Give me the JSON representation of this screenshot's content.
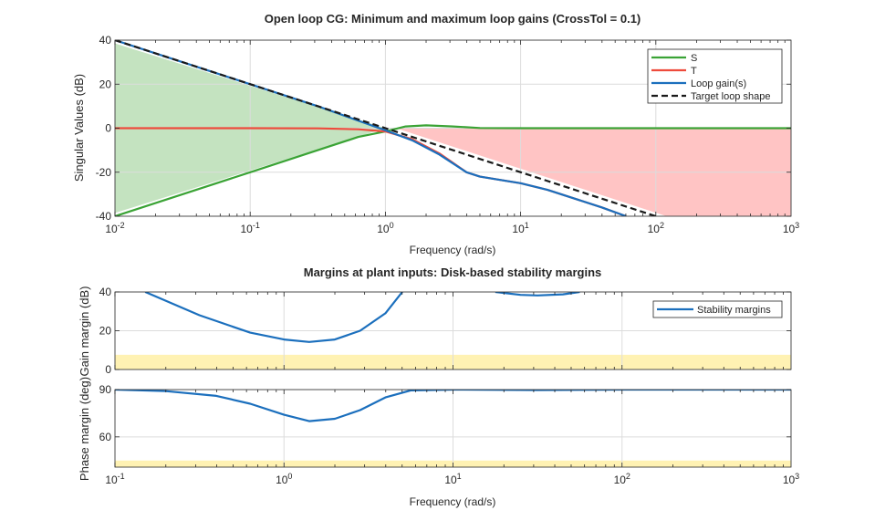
{
  "chart_data": [
    {
      "type": "line",
      "title": "Open loop CG: Minimum and maximum loop gains (CrossTol = 0.1)",
      "xlabel": "Frequency (rad/s)",
      "ylabel": "Singular Values (dB)",
      "xscale": "log",
      "xlim": [
        0.01,
        1000
      ],
      "ylim": [
        -40,
        40
      ],
      "xticks": [
        0.01,
        0.1,
        1,
        10,
        100,
        1000
      ],
      "xtick_labels": [
        [
          "10",
          "-2"
        ],
        [
          "10",
          "-1"
        ],
        [
          "10",
          "0"
        ],
        [
          "10",
          "1"
        ],
        [
          "10",
          "2"
        ],
        [
          "10",
          "3"
        ]
      ],
      "yticks": [
        -40,
        -20,
        0,
        20,
        40
      ],
      "ytick_labels": [
        "-40",
        "-20",
        "0",
        "20",
        "40"
      ],
      "grid": true,
      "legend": "top-right",
      "regions": [
        {
          "name": "low-frequency bound",
          "color": "#c4e3c0",
          "points": [
            [
              0.01,
              38.5
            ],
            [
              1,
              0
            ],
            [
              0.01,
              -38.5
            ]
          ]
        },
        {
          "name": "high-frequency bound",
          "color": "#ffc4c4",
          "points": [
            [
              1.2,
              0
            ],
            [
              1000,
              0
            ],
            [
              1000,
              -40
            ],
            [
              120,
              -40
            ]
          ]
        }
      ],
      "series": [
        {
          "name": "S",
          "color": "#3aa335",
          "dash": false,
          "x": [
            0.01,
            0.1,
            0.316,
            0.63,
            1,
            1.41,
            2,
            3.16,
            5,
            10,
            100,
            1000
          ],
          "y": [
            -40,
            -20,
            -10,
            -4,
            -1.5,
            0.8,
            1.3,
            0.8,
            0.1,
            0,
            0,
            0
          ]
        },
        {
          "name": "T",
          "color": "#ee4b3c",
          "dash": false,
          "x": [
            0.01,
            0.1,
            0.316,
            0.63,
            1,
            1.58,
            2.51,
            3.98,
            5,
            7.94,
            10,
            15.8,
            25.1,
            39.8,
            60.3
          ],
          "y": [
            0,
            0,
            -0.1,
            -0.5,
            -1.5,
            -5,
            -11.5,
            -20,
            -22,
            -24,
            -25,
            -28,
            -32,
            -36,
            -40
          ]
        },
        {
          "name": "Loop gain(s)",
          "color": "#1b6fbd",
          "dash": false,
          "x": [
            0.01,
            0.1,
            0.316,
            1,
            1.58,
            2.51,
            3.98,
            5,
            7.94,
            10,
            15.8,
            25.1,
            39.8,
            60.3
          ],
          "y": [
            40,
            20,
            10,
            -1,
            -5.5,
            -12,
            -20,
            -22,
            -24,
            -25,
            -28,
            -32,
            -36,
            -40
          ]
        },
        {
          "name": "Target loop shape",
          "color": "#1a1a1a",
          "dash": true,
          "x": [
            0.01,
            100
          ],
          "y": [
            40,
            -40
          ]
        }
      ]
    },
    {
      "type": "line",
      "title": "Margins at plant inputs: Disk-based stability margins",
      "ylabel": "Gain margin (dB)",
      "xscale": "log",
      "xlim": [
        0.1,
        1000
      ],
      "ylim": [
        0,
        40
      ],
      "yticks": [
        0,
        20,
        40
      ],
      "ytick_labels": [
        "0",
        "20",
        "40"
      ],
      "grid": true,
      "legend": "top-right",
      "band": {
        "from": 0,
        "to": 7.6,
        "color": "#fff2b3"
      },
      "series": [
        {
          "name": "Stability margins",
          "color": "#1b6fbd",
          "segments": [
            {
              "x": [
                0.151,
                0.316,
                0.631,
                1,
                1.41,
                2,
                2.82,
                3.98,
                5.01
              ],
              "y": [
                40,
                28,
                19,
                15.5,
                14.2,
                15.5,
                20,
                29,
                40
              ]
            },
            {
              "x": [
                17.8,
                25.1,
                31.6,
                44.7,
                56.2
              ],
              "y": [
                40,
                38.5,
                38.2,
                38.8,
                40
              ]
            }
          ]
        }
      ]
    },
    {
      "type": "line",
      "ylabel": "Phase margin (deg)",
      "xlabel": "Frequency (rad/s)",
      "xscale": "log",
      "xlim": [
        0.1,
        1000
      ],
      "ylim": [
        40.8,
        90
      ],
      "xticks": [
        0.1,
        1,
        10,
        100,
        1000
      ],
      "xtick_labels": [
        [
          "10",
          "-1"
        ],
        [
          "10",
          "0"
        ],
        [
          "10",
          "1"
        ],
        [
          "10",
          "2"
        ],
        [
          "10",
          "3"
        ]
      ],
      "yticks": [
        60,
        90
      ],
      "ytick_labels": [
        "60",
        "90"
      ],
      "grid": true,
      "band": {
        "from": 40.8,
        "to": 45,
        "color": "#fff2b3"
      },
      "series": [
        {
          "name": "Stability margins",
          "color": "#1b6fbd",
          "x": [
            0.1,
            0.2,
            0.398,
            0.631,
            1,
            1.41,
            2,
            2.82,
            3.98,
            5.62,
            10,
            31.6,
            100,
            1000
          ],
          "y": [
            90,
            89,
            86,
            81,
            74,
            70,
            71.5,
            77,
            85,
            89.5,
            90,
            89.7,
            90,
            90
          ]
        }
      ]
    }
  ]
}
